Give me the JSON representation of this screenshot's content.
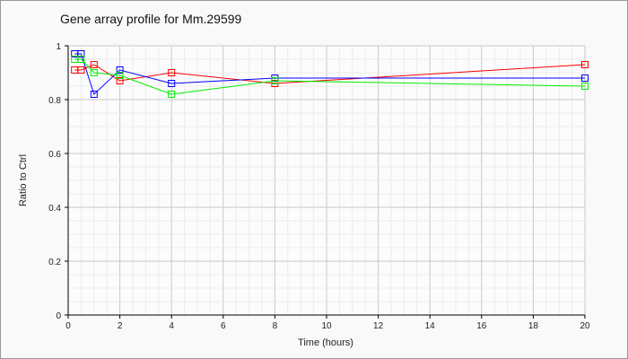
{
  "chart_data": {
    "type": "line",
    "title": "Gene array profile for Mm.29599",
    "xlabel": "Time (hours)",
    "ylabel": "Ratio to Ctrl",
    "xlim": [
      0,
      20
    ],
    "ylim": [
      0,
      1
    ],
    "xticks": [
      "0",
      "2",
      "4",
      "6",
      "8",
      "10",
      "12",
      "14",
      "16",
      "18",
      "20"
    ],
    "yticks": [
      "0",
      "0.2",
      "0.4",
      "0.6",
      "0.8",
      "1"
    ],
    "grid": true,
    "x": [
      0.25,
      0.5,
      1,
      2,
      4,
      8,
      20
    ],
    "series": [
      {
        "name": "red",
        "color": "#ff0000",
        "values": [
          0.91,
          0.91,
          0.93,
          0.87,
          0.9,
          0.86,
          0.93
        ]
      },
      {
        "name": "blue",
        "color": "#0000ff",
        "values": [
          0.97,
          0.97,
          0.82,
          0.91,
          0.86,
          0.88,
          0.88
        ]
      },
      {
        "name": "green",
        "color": "#00ee00",
        "values": [
          0.95,
          0.95,
          0.9,
          0.89,
          0.82,
          0.87,
          0.85
        ]
      }
    ]
  }
}
